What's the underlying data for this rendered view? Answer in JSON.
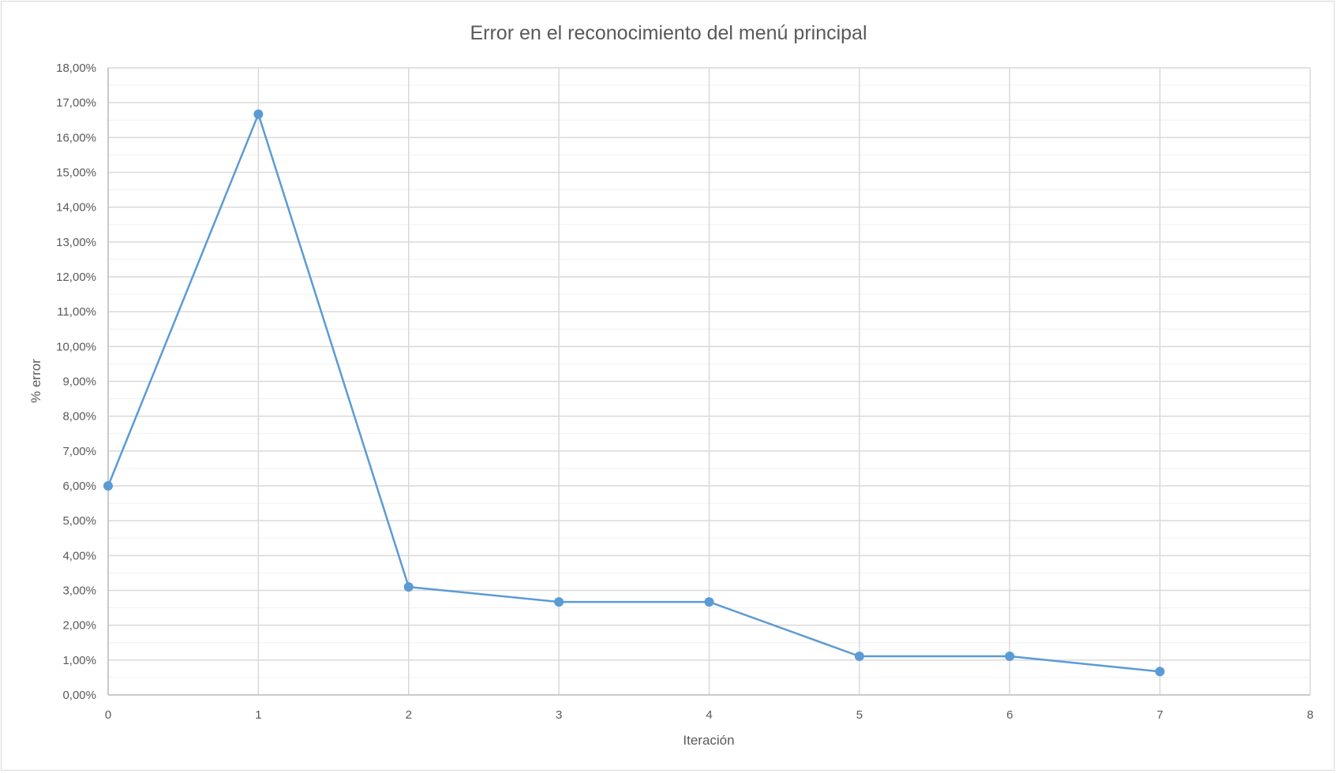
{
  "chart_data": {
    "type": "scatter",
    "title": "Error en el reconocimiento del menú principal",
    "xlabel": "Iteración",
    "ylabel": "% error",
    "xlim": [
      0,
      8
    ],
    "ylim": [
      0,
      18
    ],
    "x_ticks": [
      "0",
      "1",
      "2",
      "3",
      "4",
      "5",
      "6",
      "7",
      "8"
    ],
    "y_ticks": [
      "0,00%",
      "1,00%",
      "2,00%",
      "3,00%",
      "4,00%",
      "5,00%",
      "6,00%",
      "7,00%",
      "8,00%",
      "9,00%",
      "10,00%",
      "11,00%",
      "12,00%",
      "13,00%",
      "14,00%",
      "15,00%",
      "16,00%",
      "17,00%",
      "18,00%"
    ],
    "grid": true,
    "minor_y_grid": true,
    "series": [
      {
        "x": [
          0,
          1,
          2,
          3,
          4,
          5,
          6,
          7
        ],
        "y": [
          6.0,
          16.67,
          3.1,
          2.67,
          2.67,
          1.11,
          1.11,
          0.67
        ],
        "color": "#5b9bd5",
        "line": "straight",
        "markers": true
      }
    ]
  }
}
